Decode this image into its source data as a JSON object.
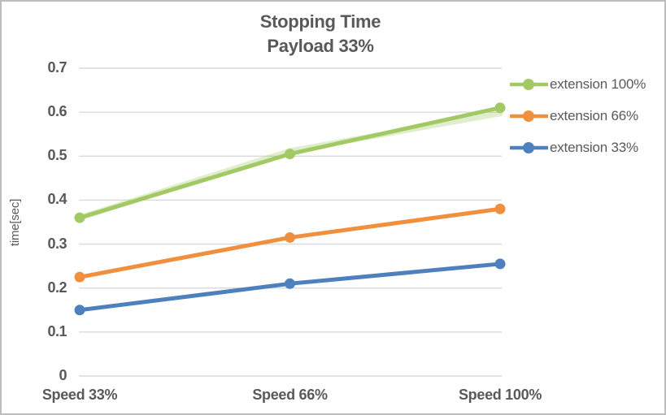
{
  "chart_data": {
    "type": "line",
    "title": "Stopping Time",
    "subtitle": "Payload 33%",
    "ylabel": "time[sec]",
    "xlabel": "",
    "categories": [
      "Speed 33%",
      "Speed 66%",
      "Speed 100%"
    ],
    "series": [
      {
        "name": "extension 100%",
        "color": "#a3c964",
        "values": [
          0.36,
          0.505,
          0.61
        ]
      },
      {
        "name": "extension 66%",
        "color": "#f0903e",
        "values": [
          0.225,
          0.315,
          0.38
        ]
      },
      {
        "name": "extension 33%",
        "color": "#4d80bc",
        "values": [
          0.15,
          0.21,
          0.255
        ]
      }
    ],
    "underlay_series": {
      "description": "faint light-green line visible behind extension 100% line",
      "color": "#a3c964",
      "opacity": 0.32,
      "values": [
        0.36,
        0.512,
        0.597
      ]
    },
    "ylim": [
      0,
      0.7
    ],
    "ytick_step": 0.1,
    "yticks": [
      "0.7",
      "0.6",
      "0.5",
      "0.4",
      "0.3",
      "0.2",
      "0.1",
      "0"
    ],
    "grid": true,
    "legend_position": "right"
  },
  "colors": {
    "text": "#595959",
    "gridline": "#d9d9d9",
    "border": "#bdbdbd",
    "background": "#ffffff"
  }
}
